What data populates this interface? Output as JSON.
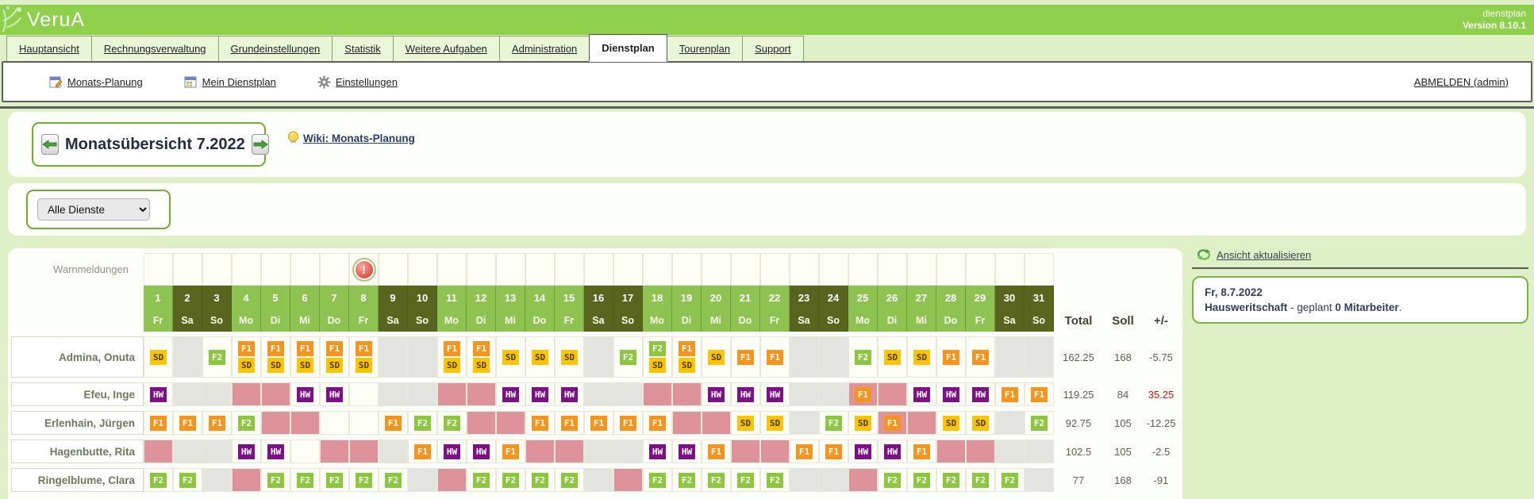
{
  "header": {
    "logo": "VeruA",
    "app_name": "dienstplan",
    "version": "Version 8.10.1"
  },
  "tabs": [
    {
      "label": "Hauptansicht",
      "active": false
    },
    {
      "label": "Rechnungsverwaltung",
      "active": false
    },
    {
      "label": "Grundeinstellungen",
      "active": false
    },
    {
      "label": "Statistik",
      "active": false
    },
    {
      "label": "Weitere Aufgaben",
      "active": false
    },
    {
      "label": "Administration",
      "active": false
    },
    {
      "label": "Dienstplan",
      "active": true
    },
    {
      "label": "Tourenplan",
      "active": false
    },
    {
      "label": "Support",
      "active": false
    }
  ],
  "toolbar": {
    "items": [
      {
        "icon": "calendar-edit",
        "label": "Monats-Planung"
      },
      {
        "icon": "calendar",
        "label": "Mein Dienstplan"
      },
      {
        "icon": "gear",
        "label": "Einstellungen"
      }
    ],
    "logout_label": "ABMELDEN (admin)"
  },
  "month_nav": {
    "title": "Monatsübersicht 7.2022",
    "prev_icon": "arrow-left",
    "next_icon": "arrow-right",
    "wiki_icon": "lightbulb",
    "wiki_label": "Wiki: Monats-Planung"
  },
  "filter": {
    "selected": "Alle Dienste"
  },
  "roster": {
    "warn_label": "Warnmeldungen",
    "warning_day": 8,
    "warning_icon": "exclamation-circle",
    "summary_headers": [
      "Total",
      "Soll",
      "+/-"
    ],
    "days": [
      {
        "n": 1,
        "w": "Fr",
        "we": false
      },
      {
        "n": 2,
        "w": "Sa",
        "we": true
      },
      {
        "n": 3,
        "w": "So",
        "we": true
      },
      {
        "n": 4,
        "w": "Mo",
        "we": false
      },
      {
        "n": 5,
        "w": "Di",
        "we": false
      },
      {
        "n": 6,
        "w": "Mi",
        "we": false
      },
      {
        "n": 7,
        "w": "Do",
        "we": false
      },
      {
        "n": 8,
        "w": "Fr",
        "we": false
      },
      {
        "n": 9,
        "w": "Sa",
        "we": true
      },
      {
        "n": 10,
        "w": "So",
        "we": true
      },
      {
        "n": 11,
        "w": "Mo",
        "we": false
      },
      {
        "n": 12,
        "w": "Di",
        "we": false
      },
      {
        "n": 13,
        "w": "Mi",
        "we": false
      },
      {
        "n": 14,
        "w": "Do",
        "we": false
      },
      {
        "n": 15,
        "w": "Fr",
        "we": false
      },
      {
        "n": 16,
        "w": "Sa",
        "we": true
      },
      {
        "n": 17,
        "w": "So",
        "we": true
      },
      {
        "n": 18,
        "w": "Mo",
        "we": false
      },
      {
        "n": 19,
        "w": "Di",
        "we": false
      },
      {
        "n": 20,
        "w": "Mi",
        "we": false
      },
      {
        "n": 21,
        "w": "Do",
        "we": false
      },
      {
        "n": 22,
        "w": "Fr",
        "we": false
      },
      {
        "n": 23,
        "w": "Sa",
        "we": true
      },
      {
        "n": 24,
        "w": "So",
        "we": true
      },
      {
        "n": 25,
        "w": "Mo",
        "we": false
      },
      {
        "n": 26,
        "w": "Di",
        "we": false
      },
      {
        "n": 27,
        "w": "Mi",
        "we": false
      },
      {
        "n": 28,
        "w": "Do",
        "we": false
      },
      {
        "n": 29,
        "w": "Fr",
        "we": false
      },
      {
        "n": 30,
        "w": "Sa",
        "we": true
      },
      {
        "n": 31,
        "w": "So",
        "we": true
      }
    ],
    "shift_colors": {
      "SD": {
        "bg": "#fdc500",
        "fg": "#4a3a00"
      },
      "F1": {
        "bg": "#f7941e",
        "fg": "#ffffff"
      },
      "F2": {
        "bg": "#8dc63f",
        "fg": "#ffffff"
      },
      "HW": {
        "bg": "#7d1086",
        "fg": "#ffffff"
      }
    },
    "absence_color": "#de929a",
    "offday_color": "#e3e3e0",
    "employees": [
      {
        "name": "Admina, Onuta",
        "cells": [
          "SD",
          "g",
          "F2",
          "F1+SD",
          "F1+SD",
          "F1+SD",
          "F1+SD",
          "F1+SD",
          "g",
          "g",
          "F1+SD",
          "F1+SD",
          "SD",
          "SD",
          "SD",
          "g",
          "F2",
          "F2+SD",
          "F1+SD",
          "SD",
          "F1",
          "F1",
          "g",
          "g",
          "F2",
          "SD",
          "SD",
          "F1",
          "F1",
          "g",
          "g"
        ],
        "total": "162.25",
        "soll": "168",
        "diff": "-5.75",
        "diff_red": false,
        "tall": true
      },
      {
        "name": "Efeu, Inge",
        "cells": [
          "HW",
          "",
          "g",
          "P",
          "P",
          "HW",
          "HW",
          "",
          "",
          "g",
          "P",
          "P",
          "HW",
          "HW",
          "HW",
          "",
          "g",
          "P",
          "P",
          "HW",
          "HW",
          "HW",
          "",
          "g",
          "P:F1",
          "P",
          "HW",
          "HW",
          "HW",
          "F1",
          "F1"
        ],
        "total": "119.25",
        "soll": "84",
        "diff": "35.25",
        "diff_red": true,
        "tall": false
      },
      {
        "name": "Erlenhain, Jürgen",
        "cells": [
          "F1",
          "F1",
          "F1",
          "F2",
          "P",
          "P",
          "",
          "",
          "F1",
          "F2",
          "F2",
          "P",
          "P",
          "F1",
          "F1",
          "F1",
          "F1",
          "F1",
          "P",
          "P",
          "SD",
          "SD",
          "",
          "F2",
          "SD",
          "P:F1",
          "P",
          "SD",
          "SD",
          "",
          "F2"
        ],
        "total": "92.75",
        "soll": "105",
        "diff": "-12.25",
        "diff_red": false,
        "tall": false
      },
      {
        "name": "Hagenbutte, Rita",
        "cells": [
          "P",
          "",
          "",
          "HW",
          "HW",
          "",
          "P",
          "P",
          "",
          "F1",
          "HW",
          "HW",
          "F1",
          "P",
          "P",
          "",
          "",
          "HW",
          "HW",
          "F1",
          "P",
          "P",
          "F1",
          "F1",
          "HW",
          "HW",
          "F1",
          "P",
          "P",
          "",
          ""
        ],
        "total": "102.5",
        "soll": "105",
        "diff": "-2.5",
        "diff_red": false,
        "tall": false
      },
      {
        "name": "Ringelblume, Clara",
        "cells": [
          "F2",
          "F2",
          "g",
          "P",
          "F2",
          "F2",
          "F2",
          "F2",
          "F2",
          "g",
          "P",
          "F2",
          "F2",
          "F2",
          "F2",
          "g",
          "P",
          "F2",
          "F2",
          "F2",
          "F2",
          "F2",
          "",
          "g",
          "P",
          "F2",
          "F2",
          "F2",
          "F2",
          "F2",
          "g"
        ],
        "total": "77",
        "soll": "168",
        "diff": "-91",
        "diff_red": false,
        "tall": false
      }
    ]
  },
  "side_panel": {
    "refresh_icon": "refresh-arrows",
    "refresh_label": "Ansicht aktualisieren",
    "info_date": "Fr, 8.7.2022",
    "info_bold1": "Hausweritschaft",
    "info_mid": " - geplant ",
    "info_bold2": "0 Mitarbeiter",
    "info_tail": "."
  }
}
